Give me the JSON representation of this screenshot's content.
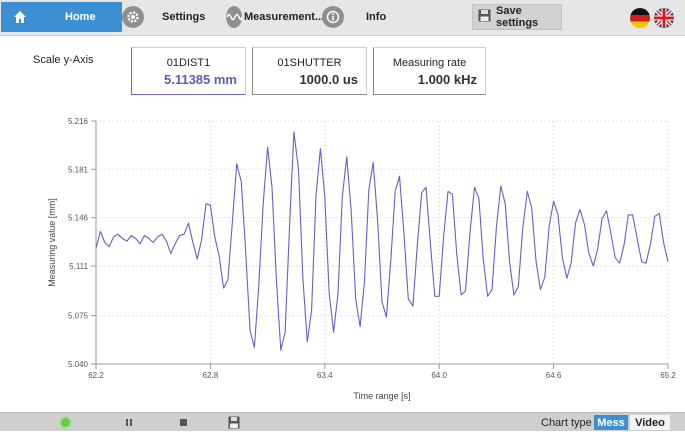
{
  "nav": {
    "tabs": [
      {
        "label": "Home",
        "icon": "home-icon",
        "active": true
      },
      {
        "label": "Settings",
        "icon": "gear-icon",
        "active": false
      },
      {
        "label": "Measurement...",
        "icon": "wave-icon",
        "active": false
      },
      {
        "label": "Info",
        "icon": "info-icon",
        "active": false
      }
    ],
    "save_label": "Save settings",
    "accent": "#3d8fd4"
  },
  "readouts": {
    "scale_label": "Scale y-Axis",
    "items": [
      {
        "title": "01DIST1",
        "value": "5.11385 mm"
      },
      {
        "title": "01SHUTTER",
        "value": "1000.0 us"
      },
      {
        "title": "Measuring rate",
        "value": "1.000 kHz"
      }
    ]
  },
  "toolbar": {
    "chart_type_label": "Chart type",
    "mess_label": "Mess",
    "video_label": "Video"
  },
  "chart_data": {
    "type": "line",
    "xlabel": "Time range [s]",
    "ylabel": "Measuring value [mm]",
    "xlim": [
      62.2,
      65.2
    ],
    "ylim": [
      5.04,
      5.216
    ],
    "xticks": [
      "62.2",
      "62.8",
      "63.4",
      "64.0",
      "64.6",
      "65.2"
    ],
    "yticks": [
      "5.040",
      "5.075",
      "5.111",
      "5.146",
      "5.181",
      "5.216"
    ],
    "grid": true,
    "series": [
      {
        "color": "#6262c2",
        "x": [
          62.2,
          62.223,
          62.246,
          62.269,
          62.292,
          62.315,
          62.338,
          62.362,
          62.385,
          62.408,
          62.431,
          62.454,
          62.477,
          62.5,
          62.523,
          62.546,
          62.569,
          62.592,
          62.615,
          62.638,
          62.662,
          62.685,
          62.708,
          62.731,
          62.754,
          62.777,
          62.8,
          62.823,
          62.846,
          62.869,
          62.892,
          62.915,
          62.938,
          62.962,
          62.985,
          63.008,
          63.031,
          63.054,
          63.077,
          63.1,
          63.123,
          63.146,
          63.169,
          63.192,
          63.215,
          63.238,
          63.262,
          63.285,
          63.308,
          63.331,
          63.354,
          63.377,
          63.4,
          63.423,
          63.446,
          63.469,
          63.492,
          63.515,
          63.538,
          63.562,
          63.585,
          63.608,
          63.631,
          63.654,
          63.677,
          63.7,
          63.723,
          63.746,
          63.769,
          63.792,
          63.815,
          63.838,
          63.862,
          63.885,
          63.908,
          63.931,
          63.954,
          63.977,
          64.0,
          64.023,
          64.046,
          64.069,
          64.092,
          64.115,
          64.138,
          64.162,
          64.185,
          64.208,
          64.231,
          64.254,
          64.277,
          64.3,
          64.323,
          64.346,
          64.369,
          64.392,
          64.415,
          64.438,
          64.462,
          64.485,
          64.508,
          64.531,
          64.554,
          64.577,
          64.6,
          64.623,
          64.646,
          64.669,
          64.692,
          64.715,
          64.738,
          64.762,
          64.785,
          64.808,
          64.831,
          64.854,
          64.877,
          64.9,
          64.923,
          64.946,
          64.969,
          64.992,
          65.015,
          65.038,
          65.062,
          65.085,
          65.108,
          65.131,
          65.154,
          65.177,
          65.2
        ],
        "y": [
          5.124,
          5.136,
          5.128,
          5.125,
          5.132,
          5.134,
          5.131,
          5.129,
          5.133,
          5.131,
          5.127,
          5.133,
          5.131,
          5.128,
          5.132,
          5.134,
          5.129,
          5.12,
          5.127,
          5.133,
          5.134,
          5.142,
          5.128,
          5.116,
          5.13,
          5.156,
          5.155,
          5.132,
          5.118,
          5.095,
          5.101,
          5.142,
          5.185,
          5.172,
          5.121,
          5.064,
          5.052,
          5.097,
          5.156,
          5.197,
          5.168,
          5.101,
          5.05,
          5.063,
          5.139,
          5.208,
          5.181,
          5.102,
          5.056,
          5.079,
          5.162,
          5.196,
          5.161,
          5.091,
          5.063,
          5.091,
          5.161,
          5.19,
          5.152,
          5.087,
          5.067,
          5.1,
          5.166,
          5.186,
          5.144,
          5.085,
          5.074,
          5.115,
          5.165,
          5.176,
          5.135,
          5.087,
          5.082,
          5.126,
          5.164,
          5.168,
          5.127,
          5.089,
          5.089,
          5.132,
          5.165,
          5.163,
          5.12,
          5.09,
          5.093,
          5.136,
          5.168,
          5.16,
          5.116,
          5.089,
          5.094,
          5.139,
          5.169,
          5.156,
          5.114,
          5.09,
          5.096,
          5.138,
          5.165,
          5.153,
          5.114,
          5.094,
          5.103,
          5.14,
          5.158,
          5.148,
          5.117,
          5.102,
          5.113,
          5.142,
          5.152,
          5.141,
          5.12,
          5.111,
          5.123,
          5.145,
          5.151,
          5.135,
          5.117,
          5.113,
          5.126,
          5.148,
          5.148,
          5.131,
          5.114,
          5.113,
          5.127,
          5.147,
          5.149,
          5.128,
          5.114
        ]
      }
    ]
  }
}
